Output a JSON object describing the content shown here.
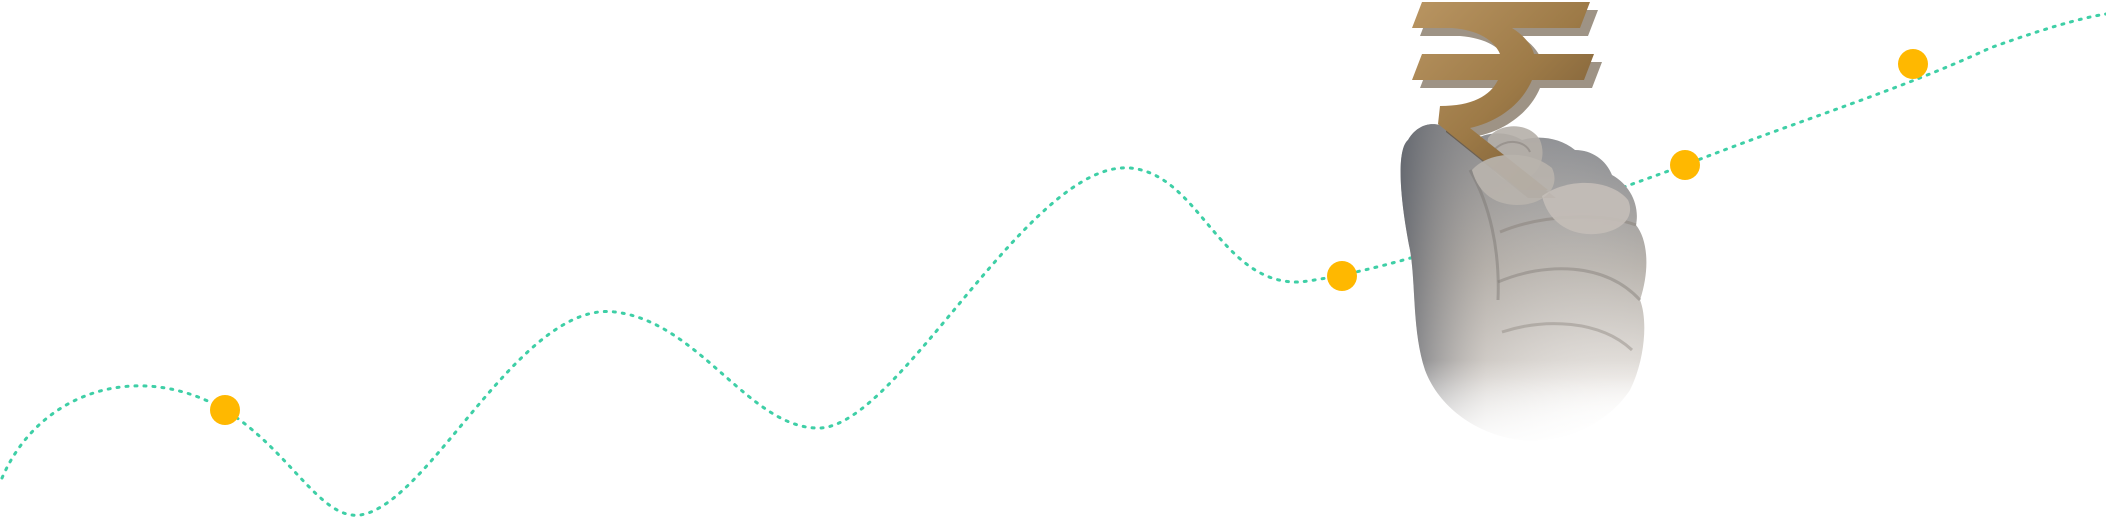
{
  "illustration": {
    "line_color": "#3ecfa6",
    "marker_color": "#ffb800",
    "symbol_color": "#a4814d",
    "skin_color": "#c9c3bd",
    "symbol_icon": "rupee-icon",
    "hand_icon": "hand-icon"
  }
}
